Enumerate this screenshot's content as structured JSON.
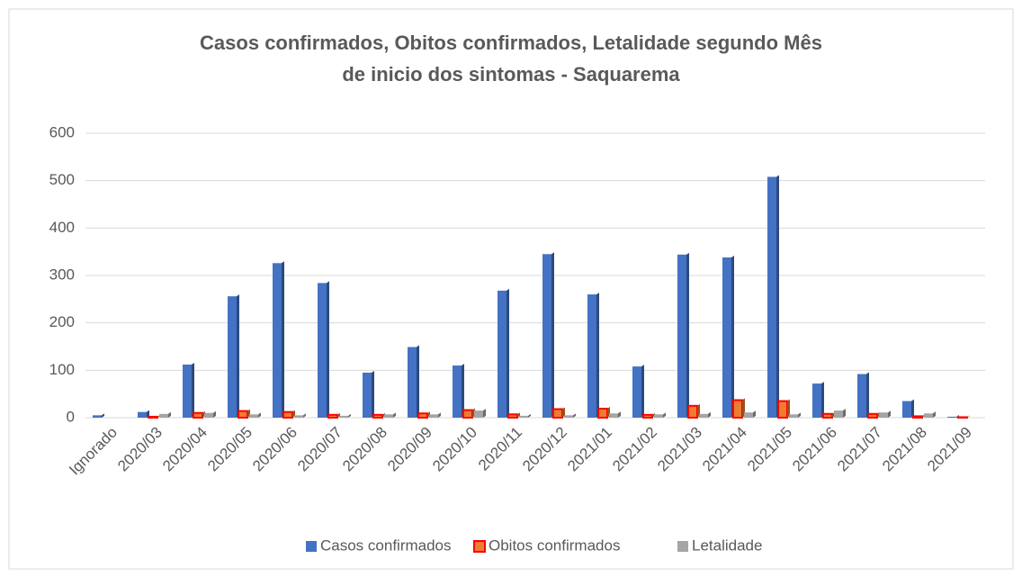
{
  "chart_data": {
    "type": "bar",
    "title": "Casos confirmados, Obitos confirmados, Letalidade segundo Mês de inicio dos sintomas - Saquarema",
    "categories": [
      "Ignorado",
      "2020/03",
      "2020/04",
      "2020/05",
      "2020/06",
      "2020/07",
      "2020/08",
      "2020/09",
      "2020/10",
      "2020/11",
      "2020/12",
      "2021/01",
      "2021/02",
      "2021/03",
      "2021/04",
      "2021/05",
      "2021/06",
      "2021/07",
      "2021/08",
      "2021/09"
    ],
    "series": [
      {
        "name": "Casos confirmados",
        "color": "#4472c4",
        "values": [
          5,
          12,
          112,
          256,
          326,
          284,
          95,
          149,
          110,
          268,
          345,
          260,
          108,
          344,
          338,
          508,
          72,
          92,
          35,
          2
        ]
      },
      {
        "name": "Obitos confirmados",
        "color": "#ed7d31",
        "values": [
          0,
          2,
          10,
          14,
          12,
          6,
          6,
          9,
          16,
          7,
          18,
          19,
          6,
          25,
          37,
          35,
          8,
          8,
          3,
          1
        ]
      },
      {
        "name": "Letalidade",
        "color": "#a5a5a5",
        "values": [
          0,
          8,
          10,
          7,
          5,
          4,
          7,
          7,
          15,
          4,
          5,
          9,
          7,
          8,
          11,
          7,
          15,
          11,
          9,
          0
        ]
      }
    ],
    "ylim": [
      0,
      600
    ],
    "yticks": [
      0,
      100,
      200,
      300,
      400,
      500,
      600
    ],
    "grid": true,
    "legend": "bottom"
  }
}
